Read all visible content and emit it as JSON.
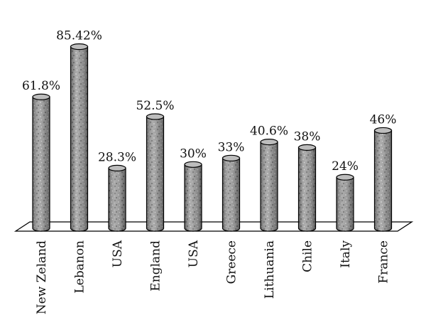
{
  "chart_data": {
    "type": "bar",
    "categories": [
      "New Zeland",
      "Lebanon",
      "USA",
      "England",
      "USA",
      "Greece",
      "Lithuania",
      "Chile",
      "Italy",
      "France"
    ],
    "values": [
      61.8,
      85.42,
      28.3,
      52.5,
      30,
      33,
      40.6,
      38,
      24,
      46
    ],
    "value_labels": [
      "61.8%",
      "85.42%",
      "28.3%",
      "52.5%",
      "30%",
      "33%",
      "40.6%",
      "38%",
      "24%",
      "46%"
    ],
    "ylim": [
      0,
      100
    ],
    "grid": false,
    "legend": "none"
  }
}
